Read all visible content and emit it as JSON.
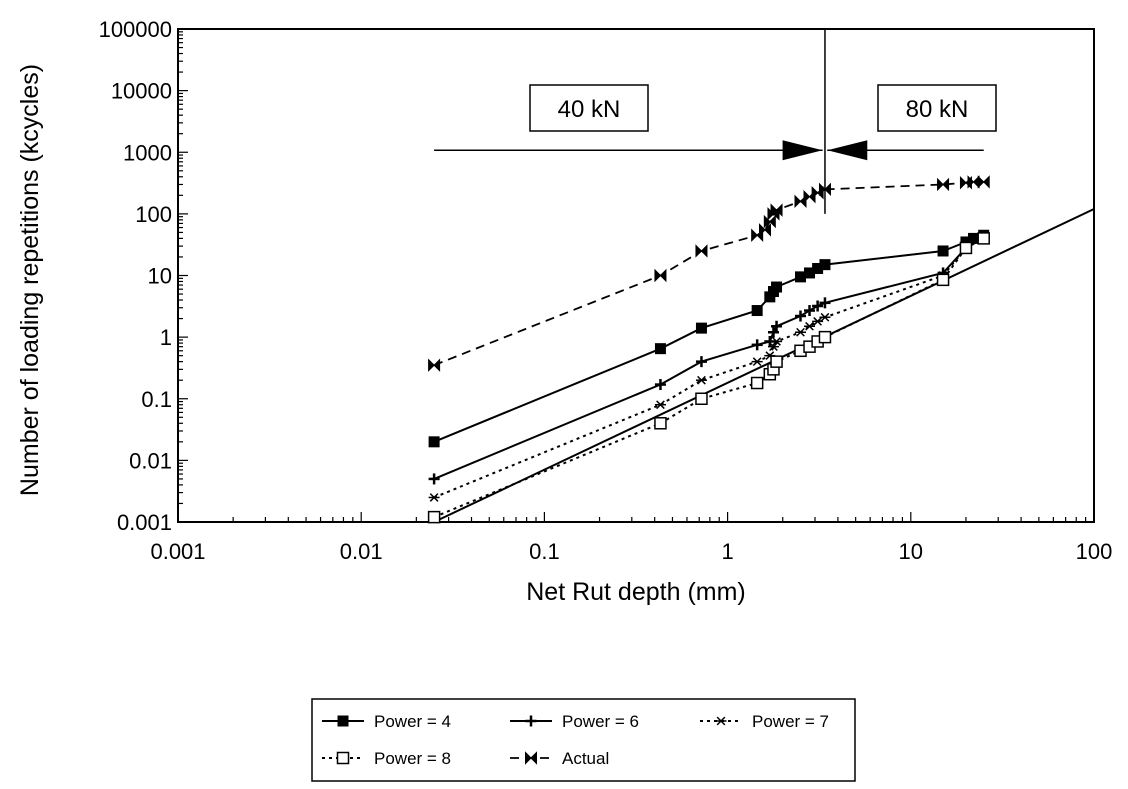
{
  "chart_data": {
    "type": "line",
    "x_scale": "log",
    "y_scale": "log",
    "xlim": [
      0.001,
      100
    ],
    "ylim": [
      0.001,
      100000
    ],
    "xlabel": "Net Rut depth (mm)",
    "ylabel": "Number of loading repetitions (kcycles)",
    "x_ticks": [
      0.001,
      0.01,
      0.1,
      1,
      10,
      100
    ],
    "x_tick_labels": [
      "0.001",
      "0.01",
      "0.1",
      "1",
      "10",
      "100"
    ],
    "y_ticks": [
      0.001,
      0.01,
      0.1,
      1,
      10,
      100,
      1000,
      10000,
      100000
    ],
    "y_tick_labels": [
      "0.001",
      "0.01",
      "0.1",
      "1",
      "10",
      "100",
      "1000",
      "10000",
      "100000"
    ],
    "grid": false,
    "legend_position": "bottom-center",
    "series": [
      {
        "name": "Power = 4",
        "line": "solid",
        "marker": "filled-square",
        "x": [
          0.025,
          0.43,
          0.72,
          1.45,
          1.7,
          1.78,
          1.85,
          2.5,
          2.8,
          3.1,
          3.4,
          15,
          20,
          22,
          25
        ],
        "y": [
          0.02,
          0.65,
          1.4,
          2.7,
          4.5,
          5.5,
          6.5,
          9.5,
          11,
          13,
          15,
          25,
          35,
          40,
          45
        ]
      },
      {
        "name": "Power = 6",
        "line": "solid",
        "marker": "plus",
        "x": [
          0.025,
          0.43,
          0.72,
          1.45,
          1.7,
          1.78,
          1.85,
          2.5,
          2.8,
          3.1,
          3.4,
          15,
          20,
          25
        ],
        "y": [
          0.005,
          0.17,
          0.4,
          0.75,
          0.85,
          1.2,
          1.5,
          2.2,
          2.7,
          3.2,
          3.6,
          11,
          28,
          40
        ]
      },
      {
        "name": "Power = 7",
        "line": "dotted",
        "marker": "asterisk",
        "x": [
          0.025,
          0.43,
          0.72,
          1.45,
          1.7,
          1.78,
          1.85,
          2.5,
          2.8,
          3.1,
          3.4,
          15,
          20,
          25
        ],
        "y": [
          0.0025,
          0.08,
          0.2,
          0.4,
          0.5,
          0.7,
          0.85,
          1.2,
          1.5,
          1.8,
          2.1,
          10,
          28,
          40
        ]
      },
      {
        "name": "Power = 8",
        "line": "dotted",
        "marker": "open-square",
        "x": [
          0.025,
          0.43,
          0.72,
          1.45,
          1.7,
          1.78,
          1.85,
          2.5,
          2.8,
          3.1,
          3.4,
          15,
          20,
          25
        ],
        "y": [
          0.0012,
          0.04,
          0.1,
          0.18,
          0.25,
          0.3,
          0.4,
          0.6,
          0.7,
          0.85,
          1.0,
          8.5,
          28,
          40
        ]
      },
      {
        "name": "Actual",
        "line": "dashed",
        "marker": "bowtie",
        "x": [
          0.025,
          0.43,
          0.72,
          1.45,
          1.6,
          1.7,
          1.78,
          1.85,
          2.5,
          2.8,
          3.1,
          3.4,
          15,
          20,
          22,
          25
        ],
        "y": [
          0.35,
          10,
          25,
          45,
          55,
          75,
          100,
          115,
          160,
          190,
          220,
          250,
          300,
          320,
          330,
          330
        ]
      },
      {
        "name": "",
        "line": "solid",
        "marker": "none",
        "x": [
          0.025,
          100
        ],
        "y": [
          0.001,
          120
        ]
      }
    ],
    "annotations": [
      {
        "text": "40 kN",
        "arrow_from_x": 0.025,
        "arrow_to_x": 3.3,
        "arrow_y": 1000
      },
      {
        "text": "80 kN",
        "arrow_from_x": 25,
        "arrow_to_x": 3.5,
        "arrow_y": 1000
      }
    ],
    "divider_x": 3.4
  },
  "legend": {
    "items": [
      "Power = 4",
      "Power = 6",
      "Power = 7",
      "Power = 8",
      "Actual"
    ]
  }
}
